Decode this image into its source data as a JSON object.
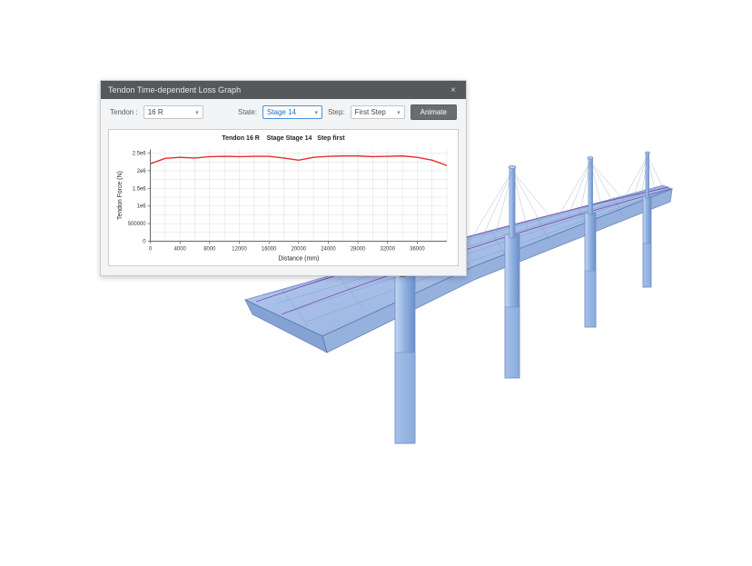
{
  "dialog": {
    "title": "Tendon Time-dependent Loss Graph",
    "close_glyph": "×"
  },
  "toolbar": {
    "tendon_label": "Tendon :",
    "tendon_value": "16 R",
    "state_label": "State:",
    "state_value": "Stage 14",
    "step_label": "Step:",
    "step_value": "First Step",
    "animate_label": "Animate"
  },
  "chart": {
    "title_tendon": "Tendon 16 R",
    "title_stage": "Stage Stage 14",
    "title_step": "Step first",
    "ylabel": "Tendon Force (N)",
    "xlabel": "Distance (mm)",
    "xlim": [
      0,
      40000
    ],
    "ylim": [
      0,
      2600000
    ],
    "xtick_labels": [
      "0",
      "4000",
      "8000",
      "12000",
      "16000",
      "20000",
      "24000",
      "28000",
      "32000",
      "36000"
    ],
    "ytick_labels": [
      "0",
      "500000",
      "1e6",
      "1.5e6",
      "2e6",
      "2.5e6"
    ],
    "grid_color": "#cfd2d5",
    "axis_color": "#555555",
    "tick_font_size": 6,
    "label_font_size": 7,
    "series": {
      "color": "#e82c2c",
      "width": 1.4,
      "points": [
        [
          0,
          2200000
        ],
        [
          2000,
          2350000
        ],
        [
          4000,
          2380000
        ],
        [
          6000,
          2360000
        ],
        [
          8000,
          2400000
        ],
        [
          10000,
          2410000
        ],
        [
          12000,
          2400000
        ],
        [
          14000,
          2410000
        ],
        [
          16000,
          2410000
        ],
        [
          18000,
          2360000
        ],
        [
          20000,
          2300000
        ],
        [
          22000,
          2380000
        ],
        [
          24000,
          2410000
        ],
        [
          26000,
          2420000
        ],
        [
          28000,
          2420000
        ],
        [
          30000,
          2400000
        ],
        [
          32000,
          2410000
        ],
        [
          34000,
          2420000
        ],
        [
          36000,
          2380000
        ],
        [
          38000,
          2300000
        ],
        [
          40000,
          2150000
        ]
      ]
    }
  },
  "bridge": {
    "deck_fill": "#9fbce8",
    "deck_stroke": "#5a7fc0",
    "pier_fill": "#a9c3ea",
    "pier_stroke": "#6f8fc8",
    "cable_color": "#8aa0c0",
    "tendon_color": "#7a3da8",
    "wireframe_color": "#4f74b8"
  }
}
